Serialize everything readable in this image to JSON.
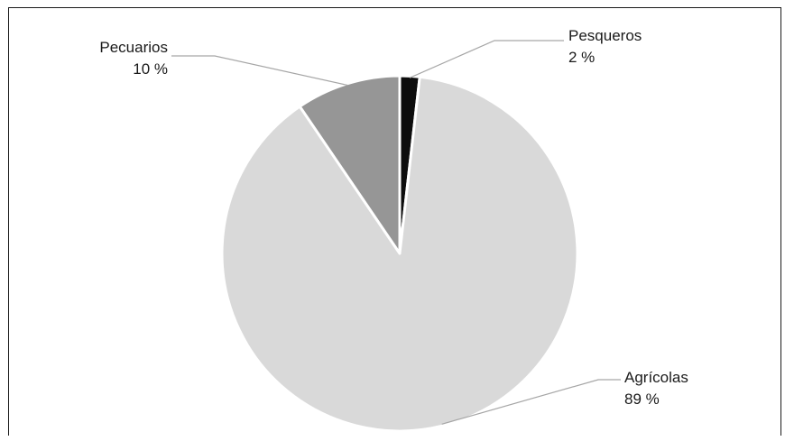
{
  "chart_data": {
    "type": "pie",
    "title": "",
    "slices": [
      {
        "label": "Pesqueros",
        "value_label": "2 %",
        "value": 1.8,
        "color": "#0d0d0d"
      },
      {
        "label": "Agrícolas",
        "value_label": "89 %",
        "value": 88.7,
        "color": "#d9d9d9"
      },
      {
        "label": "Pecuarios",
        "value_label": "10 %",
        "value": 9.5,
        "color": "#969696"
      }
    ],
    "slice_border_color": "#ffffff",
    "leader_line_color": "#a6a6a6",
    "start_angle": "12 o'clock",
    "direction": "counter-clockwise from 12 o'clock"
  }
}
